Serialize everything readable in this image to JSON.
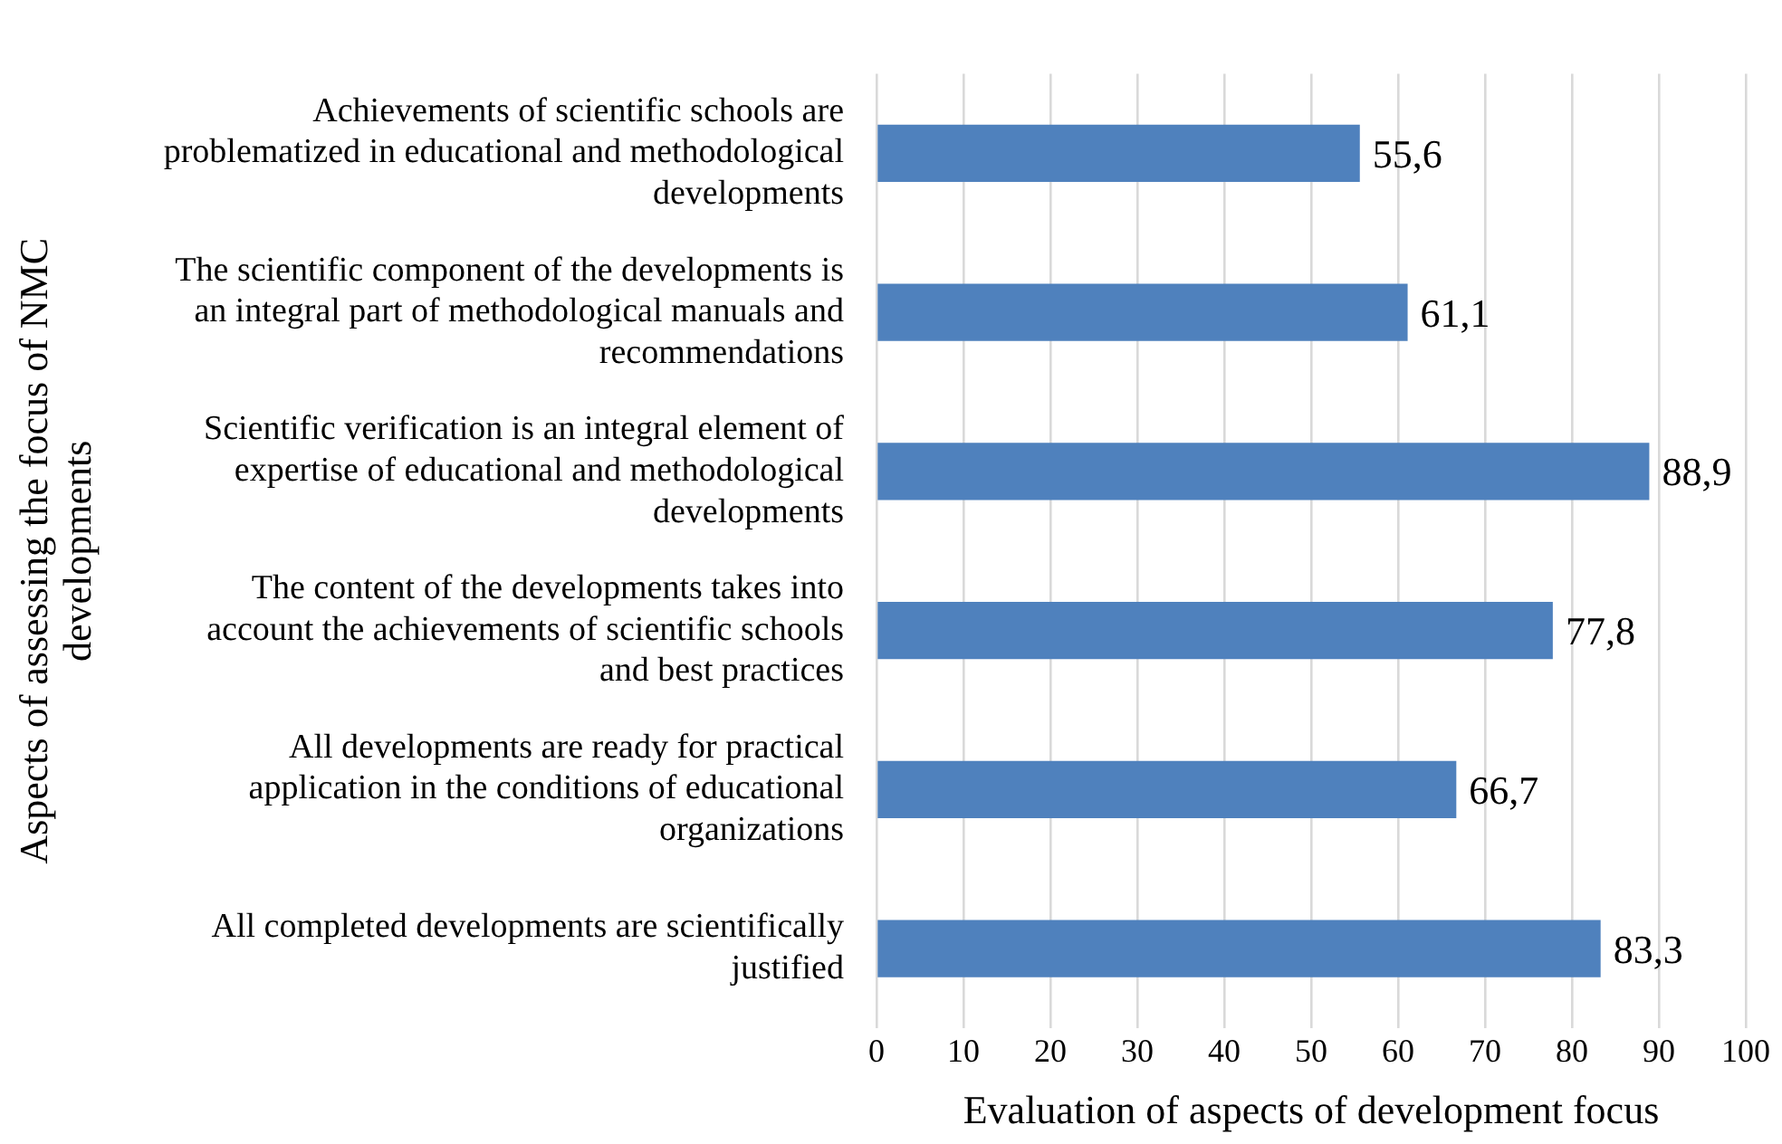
{
  "chart_data": {
    "type": "bar",
    "orientation": "horizontal",
    "xlabel": "Evaluation of aspects of development focus",
    "ylabel": "Aspects of assessing the focus of NMC developments",
    "categories": [
      "Achievements of scientific schools are problematized in educational and methodological developments",
      "The scientific component of the developments is an integral part of methodological manuals and recommendations",
      "Scientific verification is an integral element of expertise of educational and methodological developments",
      "The content of the developments takes into account the achievements of scientific schools and best practices",
      "All developments are ready for practical application in the conditions of educational organizations",
      "All completed developments are scientifically justified"
    ],
    "values": [
      55.6,
      61.1,
      88.9,
      77.8,
      66.7,
      83.3
    ],
    "value_labels": [
      "55,6",
      "61,1",
      "88,9",
      "77,8",
      "66,7",
      "83,3"
    ],
    "color": "#4f81bd",
    "xlim": [
      0,
      100
    ],
    "xticks": [
      0,
      10,
      20,
      30,
      40,
      50,
      60,
      70,
      80,
      90,
      100
    ],
    "grid": "x",
    "legend": false
  }
}
